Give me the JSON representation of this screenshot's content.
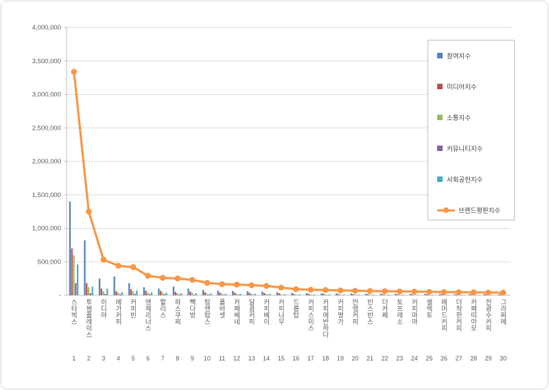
{
  "chart_data": {
    "type": "bar",
    "subtype": "grouped-bars-with-line-overlay",
    "title": "",
    "xlabel": "",
    "ylabel": "",
    "ylim": [
      0,
      4000000
    ],
    "ytick_interval": 500000,
    "ytick_labels": [
      "-",
      "500,000",
      "1,000,000",
      "1,500,000",
      "2,000,000",
      "2,500,000",
      "3,000,000",
      "3,500,000",
      "4,000,000"
    ],
    "grid": true,
    "legend_position": "right",
    "categories": [
      "스타벅스",
      "투썸플레이스",
      "이디야",
      "메가커피",
      "커피빈",
      "엔제리너스",
      "할리스",
      "파스쿠찌",
      "빽다방",
      "탐앤탐스",
      "폴바셋",
      "카페베네",
      "달콤커피",
      "커피베이",
      "커피나무",
      "드롭탑",
      "커피스미스",
      "커피에반하다",
      "커피명가",
      "만랩커피",
      "빈스빈스",
      "더카페",
      "토프레소",
      "커피마마",
      "셀렉토",
      "매머드커피",
      "더착한커피",
      "카페띠아모",
      "전광수커피",
      "그라찌에"
    ],
    "ranks": [
      1,
      2,
      3,
      4,
      5,
      6,
      7,
      8,
      9,
      10,
      11,
      12,
      13,
      14,
      15,
      16,
      17,
      18,
      19,
      20,
      21,
      22,
      23,
      24,
      25,
      26,
      27,
      28,
      29,
      30
    ],
    "series": [
      {
        "name": "참여지수",
        "key": "participation",
        "type": "bar",
        "color": "#4F81BD",
        "values": [
          1400000,
          820000,
          250000,
          280000,
          180000,
          120000,
          100000,
          130000,
          100000,
          80000,
          70000,
          65000,
          60000,
          55000,
          45000,
          35000,
          32000,
          30000,
          28000,
          26000,
          25000,
          23000,
          22000,
          21000,
          20000,
          19000,
          17000,
          16000,
          16000,
          15000
        ]
      },
      {
        "name": "미디어지수",
        "key": "media",
        "type": "bar",
        "color": "#C0504D",
        "values": [
          700000,
          180000,
          100000,
          60000,
          90000,
          70000,
          65000,
          50000,
          55000,
          45000,
          40000,
          40000,
          38000,
          35000,
          30000,
          23000,
          21000,
          20000,
          18000,
          17000,
          16000,
          15000,
          14000,
          13000,
          13000,
          12000,
          11000,
          11000,
          10000,
          10000
        ]
      },
      {
        "name": "소통지수",
        "key": "communication",
        "type": "bar",
        "color": "#9BBB59",
        "values": [
          600000,
          120000,
          60000,
          40000,
          60000,
          40000,
          40000,
          30000,
          35000,
          25000,
          25000,
          25000,
          22000,
          22000,
          18000,
          14000,
          13000,
          12000,
          11000,
          11000,
          10000,
          10000,
          9000,
          9000,
          8000,
          8000,
          8000,
          7000,
          7000,
          6000
        ]
      },
      {
        "name": "커뮤니티지수",
        "key": "community",
        "type": "bar",
        "color": "#8064A2",
        "values": [
          180000,
          30000,
          20000,
          15000,
          20000,
          15000,
          15000,
          10000,
          10000,
          10000,
          8000,
          8000,
          8000,
          8000,
          6000,
          5000,
          4000,
          4000,
          4000,
          4000,
          3000,
          3000,
          3000,
          3000,
          3000,
          2000,
          2000,
          2000,
          2000,
          2000
        ]
      },
      {
        "name": "사회공헌지수",
        "key": "social",
        "type": "bar",
        "color": "#4BACC6",
        "values": [
          460000,
          130000,
          100000,
          45000,
          70000,
          45000,
          40000,
          30000,
          30000,
          25000,
          22000,
          22000,
          22000,
          20000,
          16000,
          13000,
          12000,
          12000,
          11000,
          10000,
          10000,
          9000,
          9000,
          8000,
          7000,
          7000,
          7000,
          7000,
          6000,
          6000
        ]
      },
      {
        "name": "브랜드평판지수",
        "key": "reputation",
        "type": "line",
        "color": "#F79646",
        "values": [
          3340000,
          1250000,
          530000,
          440000,
          420000,
          290000,
          260000,
          250000,
          230000,
          185000,
          165000,
          160000,
          150000,
          140000,
          115000,
          90000,
          82000,
          78000,
          72000,
          68000,
          64000,
          60000,
          57000,
          54000,
          51000,
          48000,
          45000,
          43000,
          41000,
          39000
        ]
      }
    ]
  }
}
